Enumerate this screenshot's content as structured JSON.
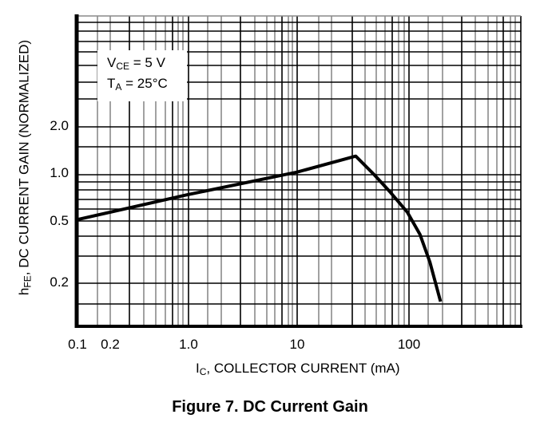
{
  "figure": {
    "caption": "Figure 7. DC Current Gain"
  },
  "axes": {
    "y_label_main": "h",
    "y_label_sub": "FE",
    "y_label_rest": ", DC CURRENT GAIN (NORMALIZED)",
    "x_label_main": "I",
    "x_label_sub": "C",
    "x_label_rest": ", COLLECTOR CURRENT (mA)",
    "y_ticks": [
      "2.0",
      "1.0",
      "0.5",
      "0.2"
    ],
    "x_ticks": [
      "0.1",
      "0.2",
      "1.0",
      "10",
      "100"
    ]
  },
  "conditions": {
    "line1_main": "V",
    "line1_sub": "CE",
    "line1_rest": " = 5 V",
    "line2_main": "T",
    "line2_sub": "A",
    "line2_rest": " = 25°C"
  },
  "chart_data": {
    "type": "line",
    "title": "Figure 7. DC Current Gain",
    "xlabel": "IC, COLLECTOR CURRENT (mA)",
    "ylabel": "hFE, DC CURRENT GAIN (NORMALIZED)",
    "x_scale": "log",
    "y_scale": "log",
    "xlim": [
      0.1,
      1000
    ],
    "x_tick_labels": [
      "0.1",
      "0.2",
      "1.0",
      "10",
      "100"
    ],
    "y_tick_labels": [
      "2.0",
      "1.0",
      "0.5",
      "0.2"
    ],
    "grid": true,
    "legend": null,
    "annotations": [
      "VCE = 5 V",
      "TA = 25°C"
    ],
    "series": [
      {
        "name": "hFE (normalized)",
        "x": [
          0.1,
          1.0,
          10,
          34,
          50,
          70,
          100,
          130,
          160,
          200
        ],
        "y": [
          0.51,
          0.74,
          1.04,
          1.32,
          1.0,
          0.77,
          0.57,
          0.41,
          0.27,
          0.15
        ]
      }
    ]
  }
}
